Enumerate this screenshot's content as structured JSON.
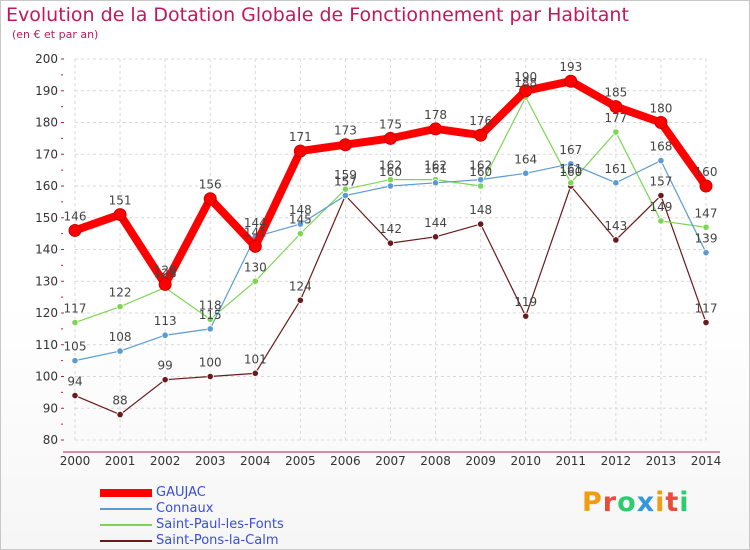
{
  "title": "Evolution de la Dotation Globale de Fonctionnement par Habitant",
  "subtitle": "(en € et par an)",
  "logo": {
    "text": "Proxiti",
    "colors": [
      "#f39c12",
      "#e74c3c",
      "#2ecc71",
      "#3498db"
    ]
  },
  "chart_data": {
    "type": "line",
    "x": [
      "2000",
      "2001",
      "2002",
      "2003",
      "2004",
      "2005",
      "2006",
      "2007",
      "2008",
      "2009",
      "2010",
      "2011",
      "2012",
      "2013",
      "2014"
    ],
    "ylim": [
      80,
      200
    ],
    "yticks": [
      80,
      90,
      100,
      110,
      120,
      130,
      140,
      150,
      160,
      170,
      180,
      190,
      200
    ],
    "grid": true,
    "legend": "bottom-left",
    "series": [
      {
        "name": "GAUJAC",
        "color": "#ff0000",
        "values": [
          146,
          151,
          129,
          156,
          141,
          171,
          173,
          175,
          178,
          176,
          190,
          193,
          185,
          180,
          160
        ]
      },
      {
        "name": "Connaux",
        "color": "#5b9bd5",
        "values": [
          105,
          108,
          113,
          115,
          144,
          148,
          157,
          160,
          161,
          162,
          164,
          167,
          161,
          168,
          139
        ]
      },
      {
        "name": "Saint-Paul-les-Fonts",
        "color": "#7cd653",
        "values": [
          117,
          122,
          128,
          118,
          130,
          145,
          159,
          162,
          162,
          160,
          188,
          161,
          177,
          149,
          147
        ]
      },
      {
        "name": "Saint-Pons-la-Calm",
        "color": "#6b1a1a",
        "values": [
          94,
          88,
          99,
          100,
          101,
          124,
          157,
          142,
          144,
          148,
          119,
          160,
          143,
          157,
          117
        ]
      }
    ]
  }
}
